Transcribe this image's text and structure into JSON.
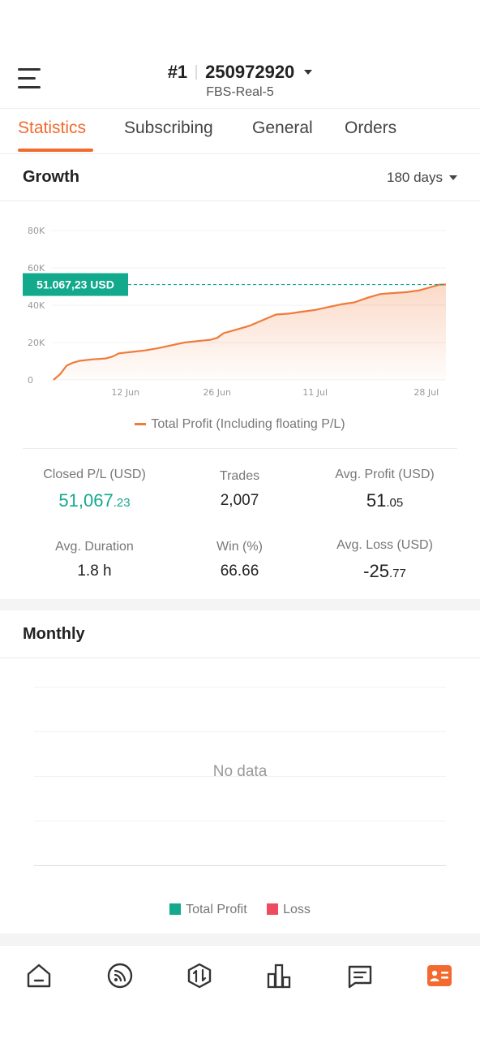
{
  "header": {
    "rank": "#1",
    "account_number": "250972920",
    "server": "FBS-Real-5"
  },
  "tabs": [
    {
      "label": "Statistics",
      "active": true
    },
    {
      "label": "Subscribing",
      "active": false
    },
    {
      "label": "General",
      "active": false
    },
    {
      "label": "Orders",
      "active": false
    }
  ],
  "growth": {
    "title": "Growth",
    "period": "180 days",
    "current_label": "51.067,23 USD",
    "legend": "Total Profit (Including floating P/L)"
  },
  "chart_data": {
    "type": "area",
    "yticks": [
      "0",
      "20K",
      "40K",
      "60K",
      "80K"
    ],
    "xticks": [
      "12 Jun",
      "26 Jun",
      "11 Jul",
      "28 Jul"
    ],
    "ylim": [
      0,
      80000
    ],
    "series": [
      {
        "name": "Total Profit (Including floating P/L)",
        "x": [
          "2024-06-01",
          "2024-06-02",
          "2024-06-03",
          "2024-06-04",
          "2024-06-05",
          "2024-06-07",
          "2024-06-09",
          "2024-06-10",
          "2024-06-11",
          "2024-06-13",
          "2024-06-15",
          "2024-06-17",
          "2024-06-19",
          "2024-06-21",
          "2024-06-23",
          "2024-06-25",
          "2024-06-26",
          "2024-06-27",
          "2024-06-29",
          "2024-07-01",
          "2024-07-03",
          "2024-07-05",
          "2024-07-07",
          "2024-07-09",
          "2024-07-11",
          "2024-07-13",
          "2024-07-15",
          "2024-07-17",
          "2024-07-19",
          "2024-07-21",
          "2024-07-23",
          "2024-07-25",
          "2024-07-27",
          "2024-07-29",
          "2024-07-30",
          "2024-07-31"
        ],
        "values": [
          0,
          3000,
          7600,
          9200,
          10200,
          11000,
          11500,
          12500,
          14200,
          15000,
          15800,
          17000,
          18500,
          20000,
          20800,
          21500,
          22500,
          25000,
          27000,
          29000,
          32000,
          35000,
          35500,
          36500,
          37500,
          39000,
          40500,
          41500,
          44000,
          46000,
          46500,
          47000,
          48000,
          50000,
          51000,
          51067
        ]
      }
    ],
    "accent": "#f07a3a",
    "label_color": "#12a98d"
  },
  "stats": [
    {
      "label": "Closed P/L (USD)",
      "int": "51,067",
      "dec": ".23",
      "green": true
    },
    {
      "label": "Trades",
      "int": "2,007",
      "dec": "",
      "green": false
    },
    {
      "label": "Avg. Profit (USD)",
      "int": "51",
      "dec": ".05",
      "green": false
    },
    {
      "label": "Avg. Duration",
      "int": "1.8 h",
      "dec": "",
      "green": false
    },
    {
      "label": "Win (%)",
      "int": "66.66",
      "dec": "",
      "green": false
    },
    {
      "label": "Avg. Loss (USD)",
      "int": "-25",
      "dec": ".77",
      "green": false
    }
  ],
  "monthly": {
    "title": "Monthly",
    "empty_text": "No data",
    "legend": [
      {
        "label": "Total Profit",
        "color": "#12a98d"
      },
      {
        "label": "Loss",
        "color": "#ee4b5e"
      }
    ]
  },
  "nav": [
    {
      "icon": "home-icon",
      "active": false
    },
    {
      "icon": "signal-feed-icon",
      "active": false
    },
    {
      "icon": "trade-icon",
      "active": false
    },
    {
      "icon": "chart-bars-icon",
      "active": false
    },
    {
      "icon": "messages-icon",
      "active": false
    },
    {
      "icon": "profile-card-icon",
      "active": true
    }
  ]
}
